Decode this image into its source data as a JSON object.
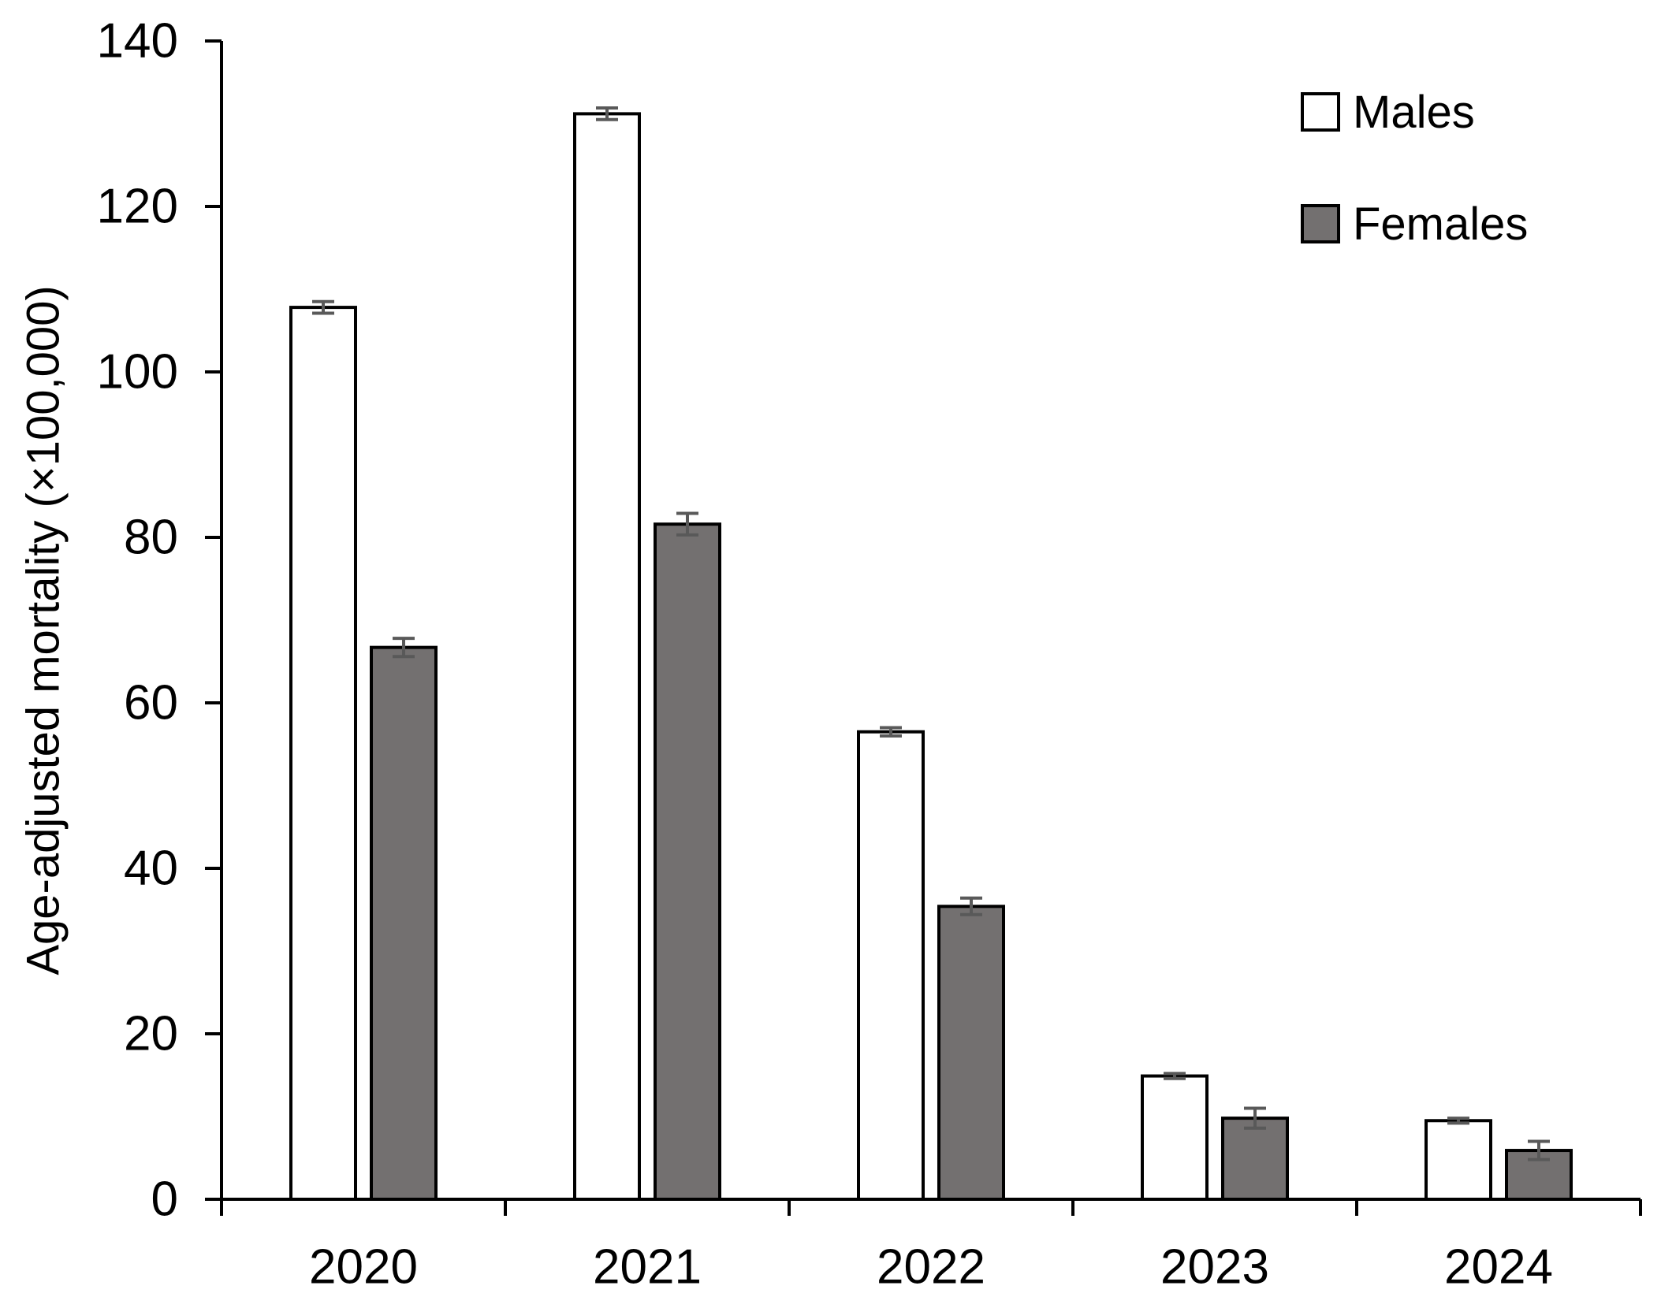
{
  "chart_data": {
    "type": "bar",
    "title": "",
    "xlabel": "",
    "ylabel": "Age-adjusted mortality (×100,000)",
    "categories": [
      "2020",
      "2021",
      "2022",
      "2023",
      "2024"
    ],
    "series": [
      {
        "name": "Males",
        "fill": "#ffffff",
        "values": [
          107.8,
          131.2,
          56.5,
          14.9,
          9.5
        ],
        "errors": [
          0.7,
          0.7,
          0.5,
          0.3,
          0.3
        ]
      },
      {
        "name": "Females",
        "fill": "#737070",
        "values": [
          66.7,
          81.6,
          35.4,
          9.8,
          5.9
        ],
        "errors": [
          1.1,
          1.3,
          1.0,
          1.2,
          1.1
        ]
      }
    ],
    "ylim": [
      0,
      140
    ],
    "yticks": [
      0,
      20,
      40,
      60,
      80,
      100,
      120,
      140
    ],
    "grid": false,
    "legend_position": "top-right",
    "error_bars": true,
    "colors": {
      "axis": "#000000",
      "text": "#000000",
      "bar_border": "#000000",
      "error_bar": "#595959"
    }
  }
}
